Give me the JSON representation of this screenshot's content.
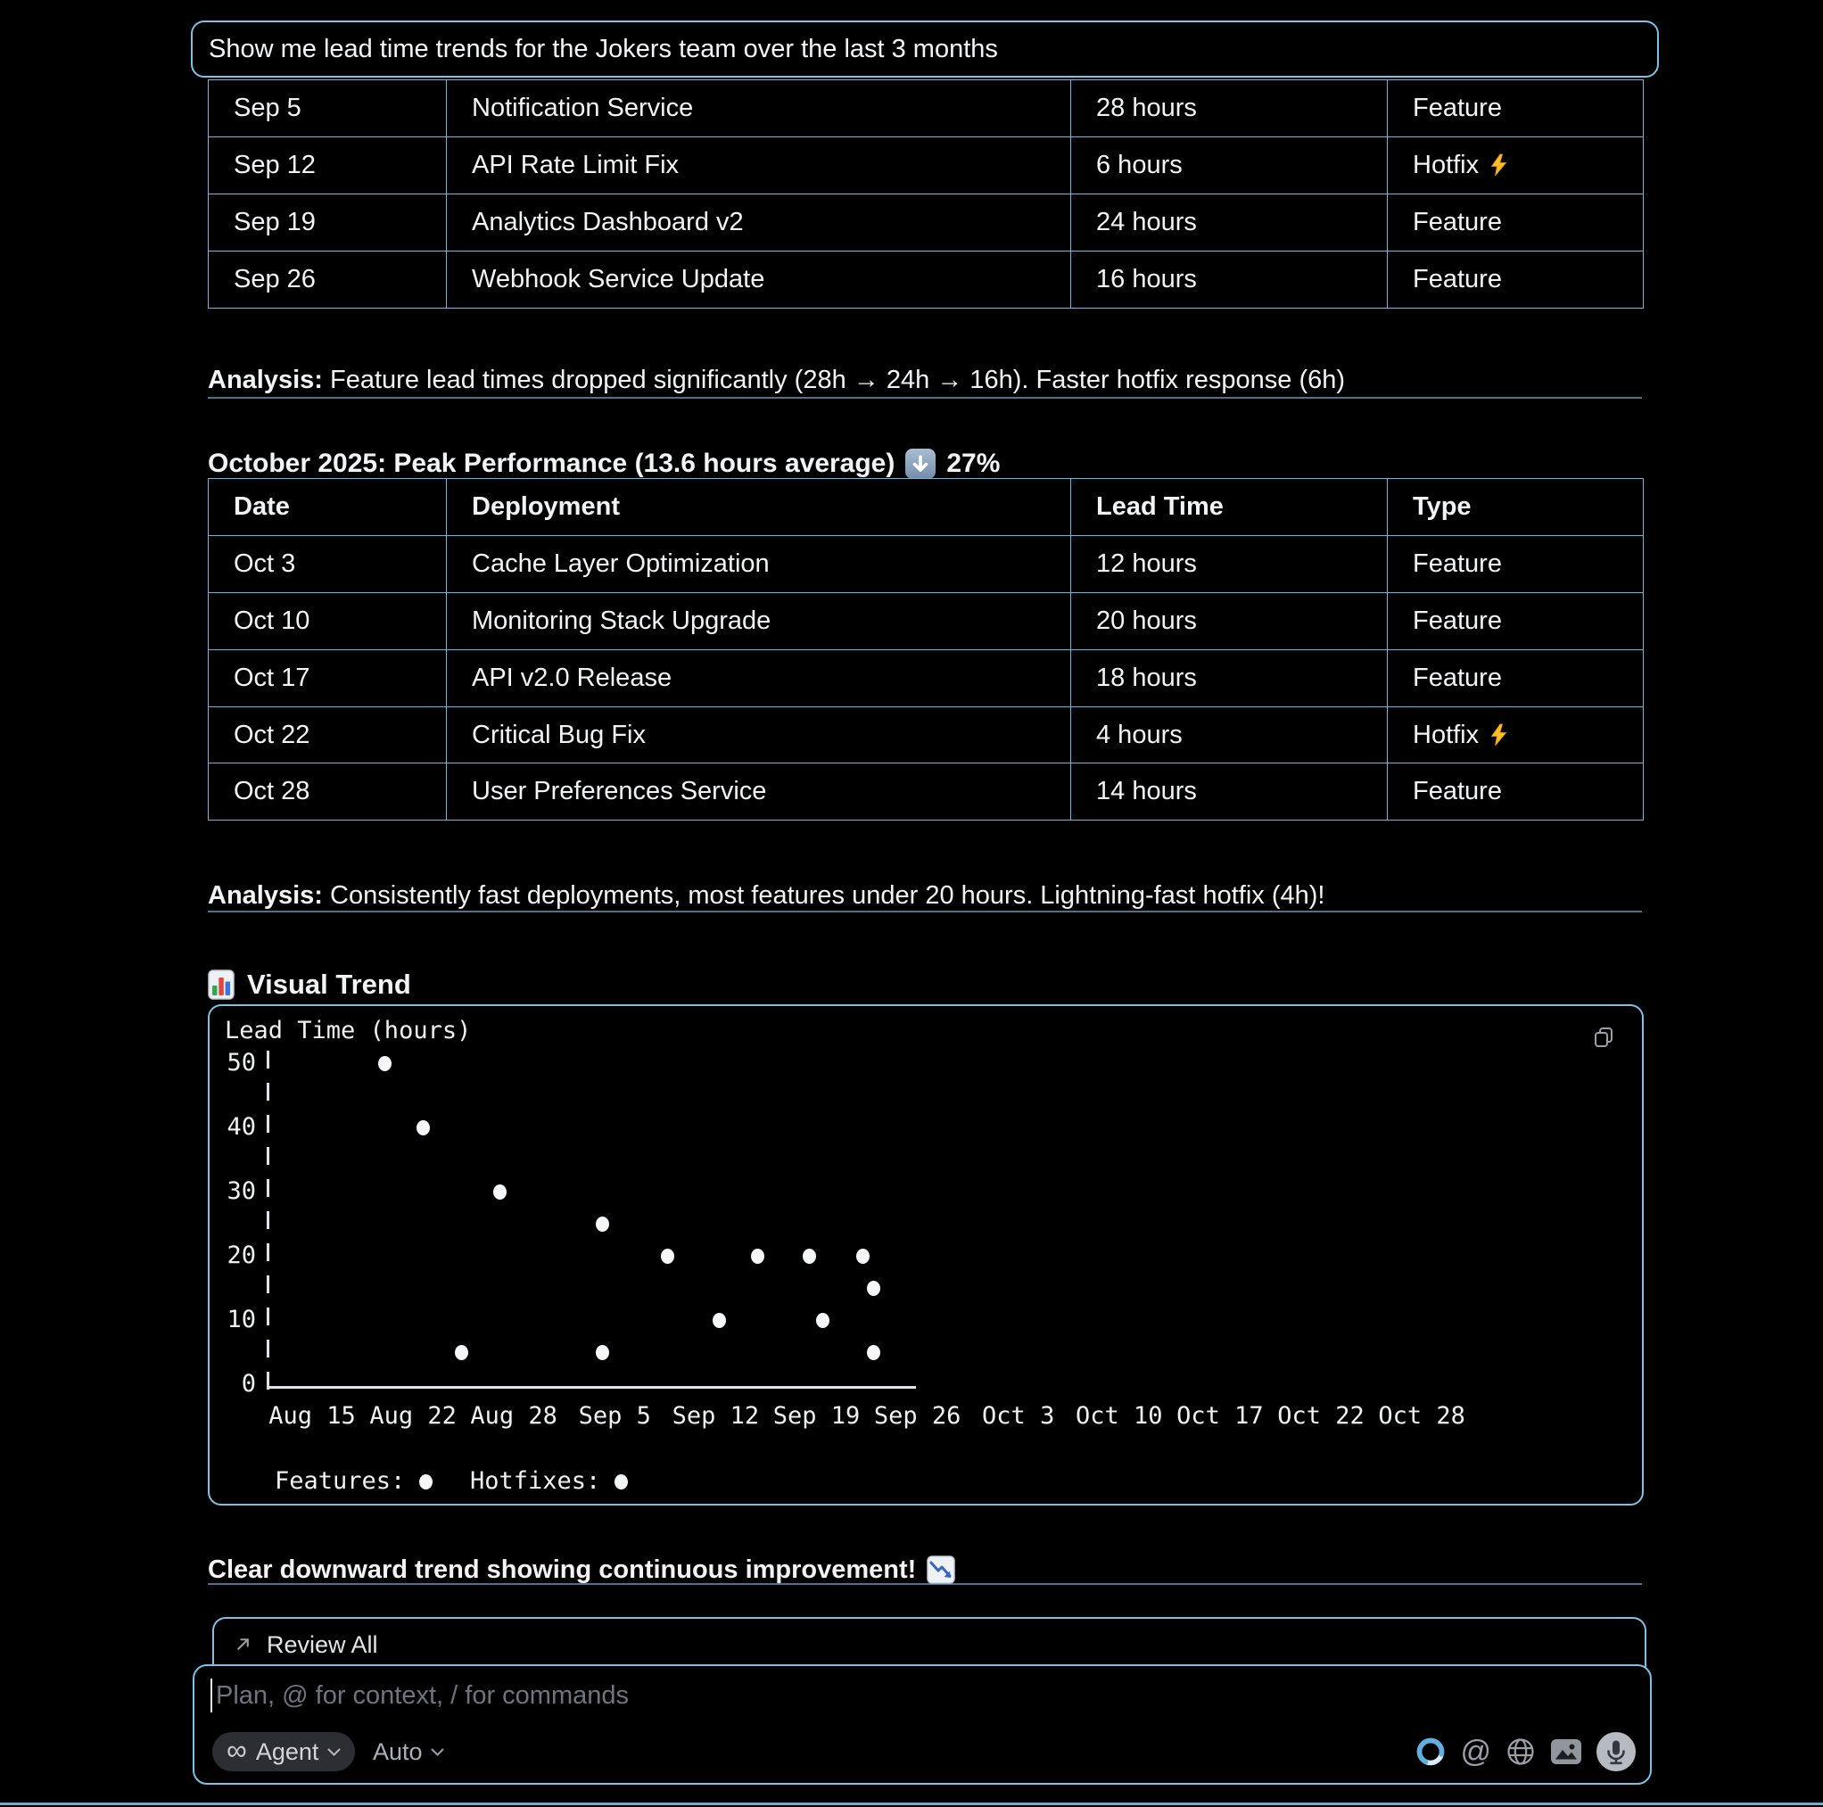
{
  "user_message": "Show me lead time trends for the Jokers team over the last 3 months",
  "tables": {
    "september": {
      "rows": [
        {
          "date": "Sep 5",
          "deployment": "Notification Service",
          "lead_time": "28 hours",
          "type": "Feature",
          "hotfix": false
        },
        {
          "date": "Sep 12",
          "deployment": "API Rate Limit Fix",
          "lead_time": "6 hours",
          "type": "Hotfix",
          "hotfix": true
        },
        {
          "date": "Sep 19",
          "deployment": "Analytics Dashboard v2",
          "lead_time": "24 hours",
          "type": "Feature",
          "hotfix": false
        },
        {
          "date": "Sep 26",
          "deployment": "Webhook Service Update",
          "lead_time": "16 hours",
          "type": "Feature",
          "hotfix": false
        }
      ]
    },
    "october": {
      "headers": [
        "Date",
        "Deployment",
        "Lead Time",
        "Type"
      ],
      "rows": [
        {
          "date": "Oct 3",
          "deployment": "Cache Layer Optimization",
          "lead_time": "12 hours",
          "type": "Feature",
          "hotfix": false
        },
        {
          "date": "Oct 10",
          "deployment": "Monitoring Stack Upgrade",
          "lead_time": "20 hours",
          "type": "Feature",
          "hotfix": false
        },
        {
          "date": "Oct 17",
          "deployment": "API v2.0 Release",
          "lead_time": "18 hours",
          "type": "Feature",
          "hotfix": false
        },
        {
          "date": "Oct 22",
          "deployment": "Critical Bug Fix",
          "lead_time": "4 hours",
          "type": "Hotfix",
          "hotfix": true
        },
        {
          "date": "Oct 28",
          "deployment": "User Preferences Service",
          "lead_time": "14 hours",
          "type": "Feature",
          "hotfix": false
        }
      ]
    }
  },
  "analysis_september": {
    "label": "Analysis:",
    "text": " Feature lead times dropped significantly (28h → 24h → 16h). Faster hotfix response (6h)"
  },
  "october_heading": {
    "text": "October 2025: Peak Performance (13.6 hours average)",
    "suffix": "27%"
  },
  "analysis_october": {
    "label": "Analysis:",
    "text": " Consistently fast deployments, most features under 20 hours. Lightning-fast hotfix (4h)!"
  },
  "visual_trend_heading": "Visual Trend",
  "chart_data": {
    "type": "scatter",
    "title": "Lead Time (hours)",
    "x_tick_labels": [
      "Aug 15",
      "Aug 22",
      "Aug 28",
      "Sep 5",
      "Sep 12",
      "Sep 19",
      "Sep 26",
      "Oct 3",
      "Oct 10",
      "Oct 17",
      "Oct 22",
      "Oct 28"
    ],
    "y_ticks": [
      0,
      10,
      20,
      30,
      40,
      50
    ],
    "ylim": [
      0,
      50
    ],
    "grid": false,
    "legend_position": "bottom",
    "legend": [
      {
        "label": "Features:",
        "marker": "dot"
      },
      {
        "label": "Hotfixes:",
        "marker": "dot"
      }
    ],
    "points_note": "x is a fractional index into x_tick_labels; y is lead time in hours",
    "points": [
      {
        "x": 0.72,
        "y": 50
      },
      {
        "x": 1.1,
        "y": 40
      },
      {
        "x": 1.48,
        "y": 5
      },
      {
        "x": 1.86,
        "y": 30
      },
      {
        "x": 2.88,
        "y": 25
      },
      {
        "x": 2.88,
        "y": 5
      },
      {
        "x": 3.52,
        "y": 20
      },
      {
        "x": 4.04,
        "y": 10
      },
      {
        "x": 4.42,
        "y": 20
      },
      {
        "x": 4.93,
        "y": 20
      },
      {
        "x": 5.06,
        "y": 10
      },
      {
        "x": 5.46,
        "y": 20
      },
      {
        "x": 5.57,
        "y": 15
      },
      {
        "x": 5.57,
        "y": 5
      }
    ]
  },
  "closing_line": "Clear downward trend showing continuous improvement!",
  "review_all": {
    "label": "Review All"
  },
  "composer": {
    "placeholder": "Plan, @ for context, / for commands",
    "agent_label": "Agent",
    "mode_label": "Auto",
    "infinity_glyph": "∞",
    "at_glyph": "@"
  },
  "colors": {
    "accent_blue": "#7cc2e8",
    "table_border": "#6fb5dd",
    "text": "#f2f3f5",
    "muted": "#9aa0a6",
    "bolt_yellow": "#fbbf24"
  }
}
